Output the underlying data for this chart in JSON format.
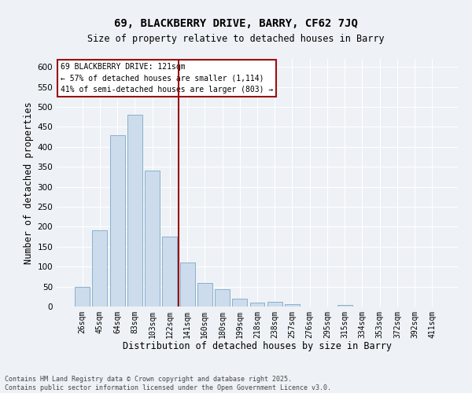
{
  "title1": "69, BLACKBERRY DRIVE, BARRY, CF62 7JQ",
  "title2": "Size of property relative to detached houses in Barry",
  "xlabel": "Distribution of detached houses by size in Barry",
  "ylabel": "Number of detached properties",
  "categories": [
    "26sqm",
    "45sqm",
    "64sqm",
    "83sqm",
    "103sqm",
    "122sqm",
    "141sqm",
    "160sqm",
    "180sqm",
    "199sqm",
    "218sqm",
    "238sqm",
    "257sqm",
    "276sqm",
    "295sqm",
    "315sqm",
    "334sqm",
    "353sqm",
    "372sqm",
    "392sqm",
    "411sqm"
  ],
  "values": [
    50,
    190,
    430,
    480,
    340,
    175,
    110,
    60,
    43,
    20,
    9,
    11,
    5,
    0,
    0,
    3,
    0,
    0,
    0,
    0,
    0
  ],
  "bar_color": "#ccdcec",
  "bar_edge_color": "#8ab0cc",
  "vline_pos": 5.5,
  "vline_color": "#991111",
  "annotation_title": "69 BLACKBERRY DRIVE: 121sqm",
  "annotation_line1": "← 57% of detached houses are smaller (1,114)",
  "annotation_line2": "41% of semi-detached houses are larger (803) →",
  "annotation_box_facecolor": "#ffffff",
  "annotation_border_color": "#991111",
  "ylim": [
    0,
    620
  ],
  "yticks": [
    0,
    50,
    100,
    150,
    200,
    250,
    300,
    350,
    400,
    450,
    500,
    550,
    600
  ],
  "background_color": "#eef2f6",
  "grid_color": "#ffffff",
  "footer": "Contains HM Land Registry data © Crown copyright and database right 2025.\nContains public sector information licensed under the Open Government Licence v3.0."
}
